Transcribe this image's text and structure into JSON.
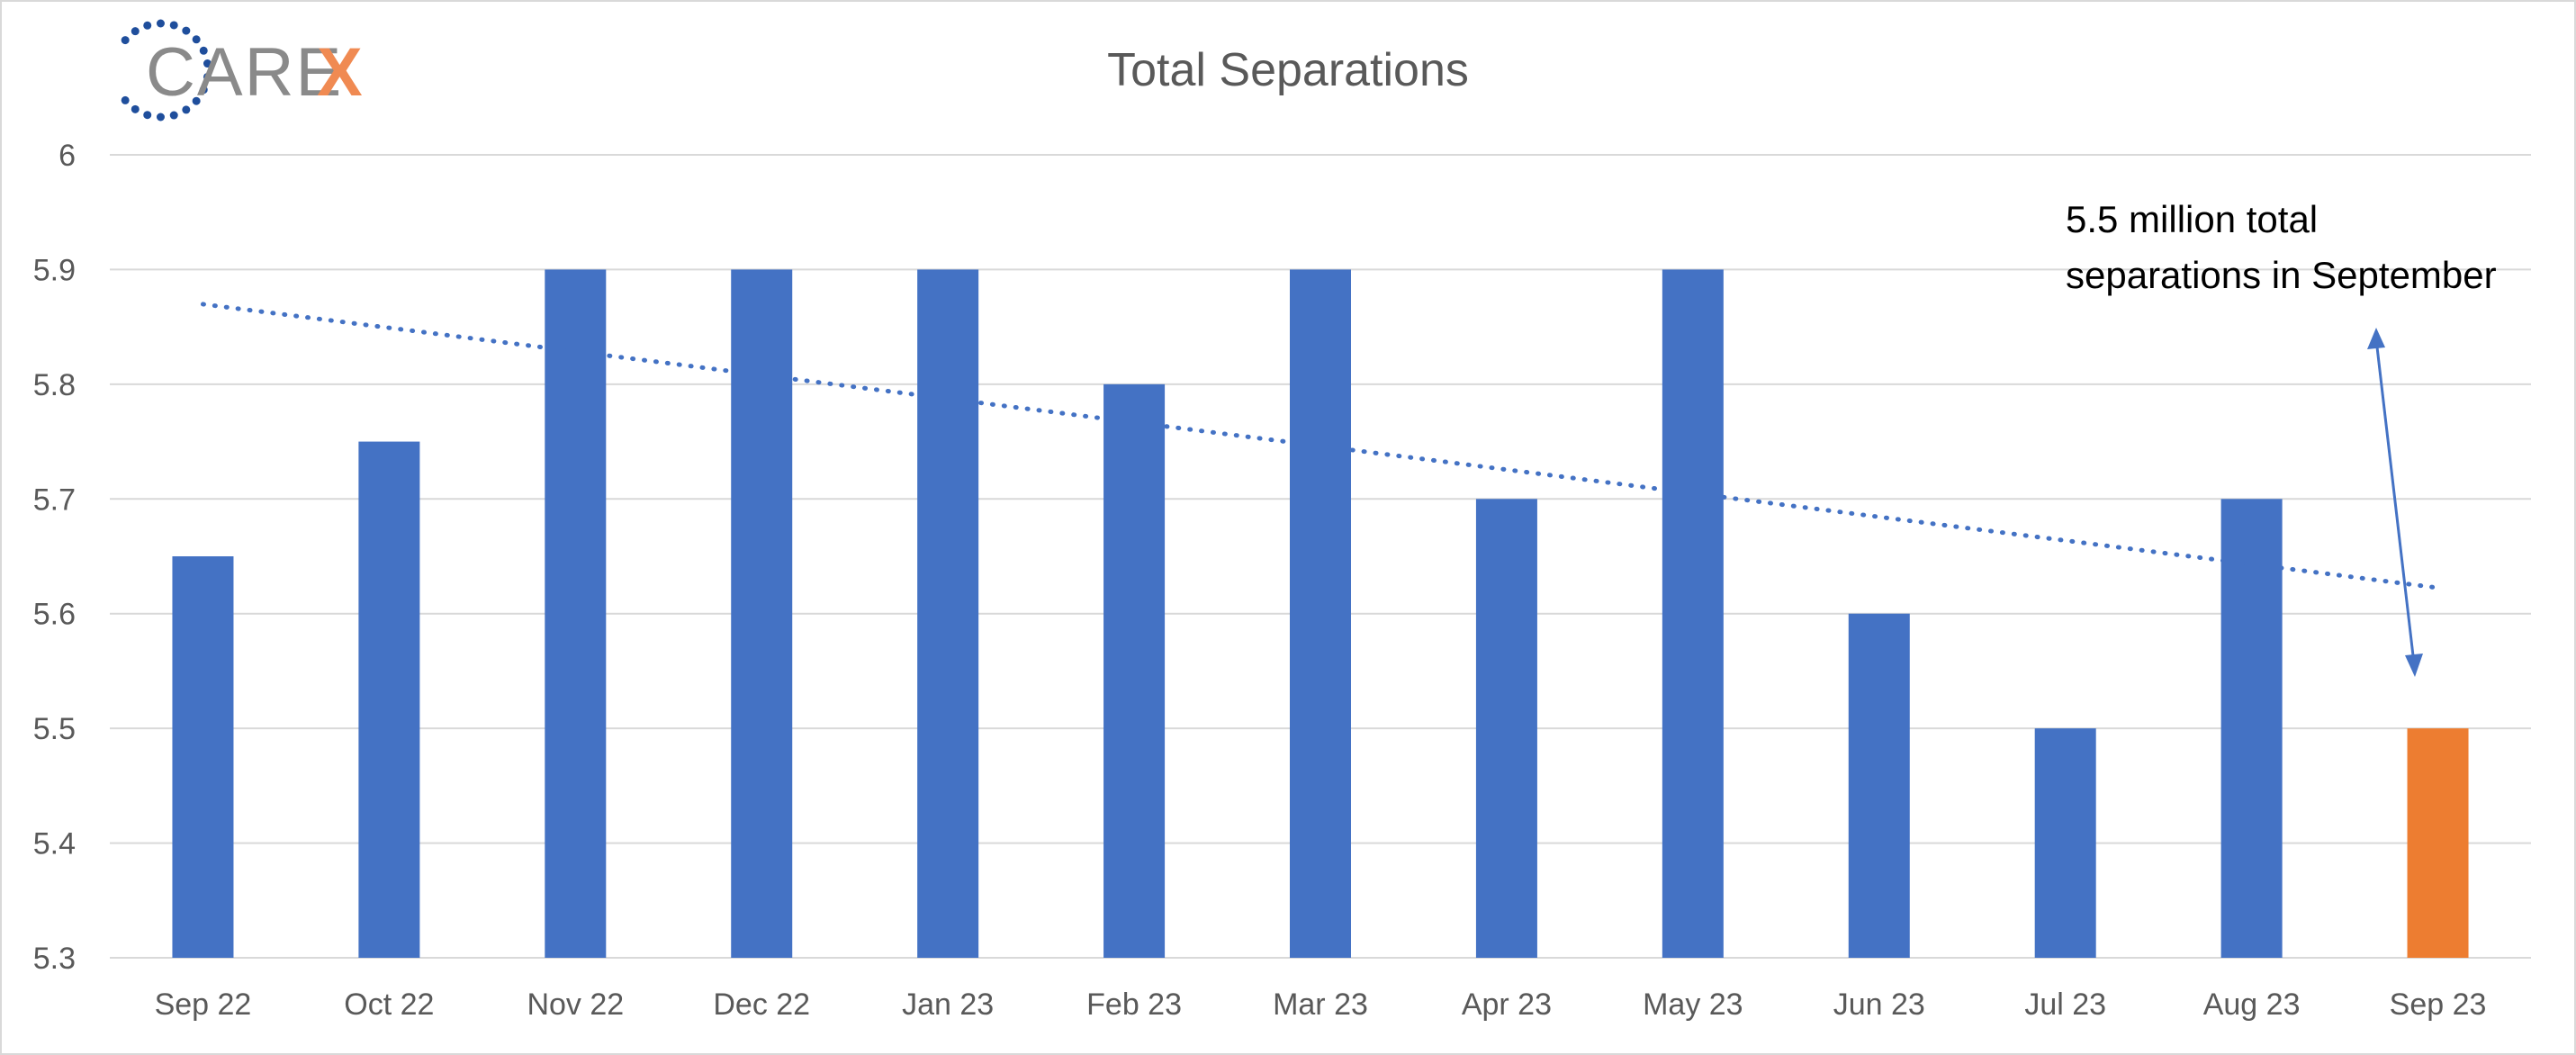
{
  "logo": {
    "text": "CARE",
    "accent_text": "X",
    "dot_color": "#1f4e9c",
    "text_color": "#8a8a8a",
    "accent_color": "#f08a52"
  },
  "annotation": {
    "line1": "5.5 million total",
    "line2": "separations in September",
    "arrow_color": "#4472c4"
  },
  "chart_data": {
    "type": "bar",
    "title": "Total Separations",
    "xlabel": "",
    "ylabel": "",
    "categories": [
      "Sep 22",
      "Oct 22",
      "Nov 22",
      "Dec 22",
      "Jan 23",
      "Feb 23",
      "Mar 23",
      "Apr 23",
      "May 23",
      "Jun 23",
      "Jul 23",
      "Aug 23",
      "Sep 23"
    ],
    "values": [
      5.65,
      5.75,
      5.9,
      5.9,
      5.9,
      5.8,
      5.9,
      5.7,
      5.9,
      5.6,
      5.5,
      5.7,
      5.5
    ],
    "bar_colors": [
      "#4472c4",
      "#4472c4",
      "#4472c4",
      "#4472c4",
      "#4472c4",
      "#4472c4",
      "#4472c4",
      "#4472c4",
      "#4472c4",
      "#4472c4",
      "#4472c4",
      "#4472c4",
      "#ed7d31"
    ],
    "ylim": [
      5.3,
      6.0
    ],
    "yticks": [
      "5.3",
      "5.4",
      "5.5",
      "5.6",
      "5.7",
      "5.8",
      "5.9",
      "6"
    ],
    "grid": true,
    "legend": "none",
    "trendline": {
      "type": "linear",
      "style": "dotted",
      "color": "#4472c4"
    }
  }
}
